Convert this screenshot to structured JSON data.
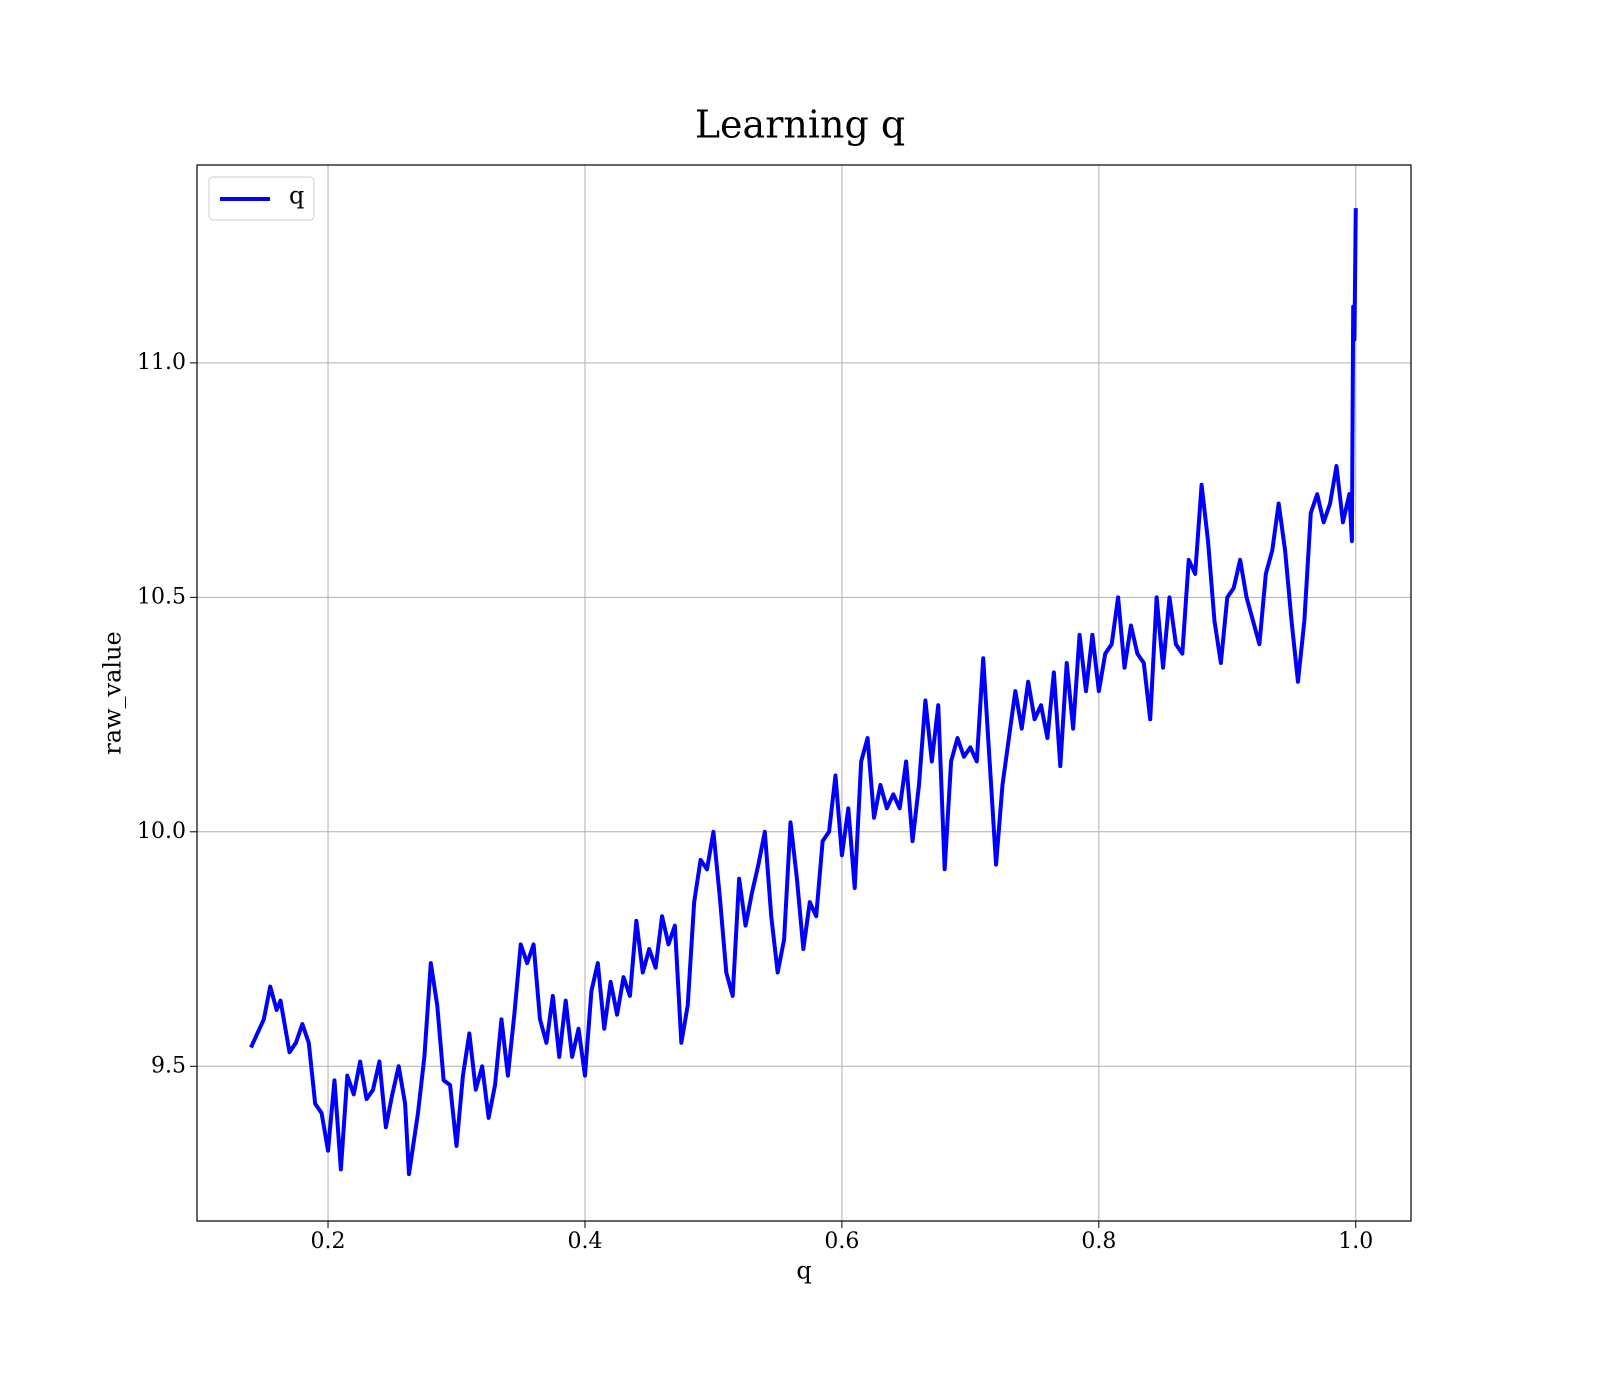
{
  "chart_data": {
    "type": "line",
    "title": "Learning q",
    "xlabel": "q",
    "ylabel": "raw_value",
    "xlim": [
      0.098,
      1.043
    ],
    "ylim": [
      9.17,
      11.422
    ],
    "xticks": [
      {
        "value": 0.2,
        "label": "0.2"
      },
      {
        "value": 0.4,
        "label": "0.4"
      },
      {
        "value": 0.6,
        "label": "0.6"
      },
      {
        "value": 0.8,
        "label": "0.8"
      },
      {
        "value": 1.0,
        "label": "1.0"
      }
    ],
    "yticks": [
      {
        "value": 9.5,
        "label": "9.5"
      },
      {
        "value": 10.0,
        "label": "10.0"
      },
      {
        "value": 10.5,
        "label": "10.5"
      },
      {
        "value": 11.0,
        "label": "11.0"
      }
    ],
    "grid": true,
    "legend": "upper left",
    "x": [
      0.14,
      0.15,
      0.155,
      0.16,
      0.163,
      0.17,
      0.175,
      0.18,
      0.185,
      0.19,
      0.195,
      0.2,
      0.205,
      0.21,
      0.215,
      0.22,
      0.225,
      0.23,
      0.235,
      0.24,
      0.245,
      0.25,
      0.255,
      0.26,
      0.263,
      0.27,
      0.275,
      0.28,
      0.285,
      0.29,
      0.295,
      0.3,
      0.305,
      0.31,
      0.315,
      0.32,
      0.325,
      0.33,
      0.335,
      0.34,
      0.345,
      0.35,
      0.355,
      0.36,
      0.365,
      0.37,
      0.375,
      0.38,
      0.385,
      0.39,
      0.395,
      0.4,
      0.405,
      0.41,
      0.415,
      0.42,
      0.425,
      0.43,
      0.435,
      0.44,
      0.445,
      0.45,
      0.455,
      0.46,
      0.465,
      0.47,
      0.475,
      0.48,
      0.485,
      0.49,
      0.495,
      0.5,
      0.505,
      0.51,
      0.515,
      0.52,
      0.525,
      0.53,
      0.535,
      0.54,
      0.545,
      0.55,
      0.555,
      0.56,
      0.565,
      0.57,
      0.575,
      0.58,
      0.585,
      0.59,
      0.595,
      0.6,
      0.605,
      0.61,
      0.615,
      0.62,
      0.625,
      0.63,
      0.635,
      0.64,
      0.645,
      0.65,
      0.655,
      0.66,
      0.665,
      0.67,
      0.675,
      0.68,
      0.685,
      0.69,
      0.695,
      0.7,
      0.705,
      0.71,
      0.715,
      0.72,
      0.725,
      0.73,
      0.735,
      0.74,
      0.745,
      0.75,
      0.755,
      0.76,
      0.765,
      0.77,
      0.775,
      0.78,
      0.785,
      0.79,
      0.795,
      0.8,
      0.805,
      0.81,
      0.815,
      0.82,
      0.825,
      0.83,
      0.835,
      0.84,
      0.845,
      0.85,
      0.855,
      0.86,
      0.865,
      0.87,
      0.875,
      0.88,
      0.885,
      0.89,
      0.895,
      0.9,
      0.905,
      0.91,
      0.915,
      0.92,
      0.925,
      0.93,
      0.935,
      0.94,
      0.945,
      0.95,
      0.955,
      0.96,
      0.965,
      0.97,
      0.975,
      0.98,
      0.985,
      0.99,
      0.995,
      0.997,
      0.998,
      0.999,
      1.0
    ],
    "series": [
      {
        "name": "q",
        "color": "#0000ff",
        "values": [
          9.54,
          9.6,
          9.67,
          9.62,
          9.64,
          9.53,
          9.55,
          9.59,
          9.55,
          9.42,
          9.4,
          9.32,
          9.47,
          9.28,
          9.48,
          9.44,
          9.51,
          9.43,
          9.45,
          9.51,
          9.37,
          9.44,
          9.5,
          9.42,
          9.27,
          9.4,
          9.52,
          9.72,
          9.63,
          9.47,
          9.46,
          9.33,
          9.48,
          9.57,
          9.45,
          9.5,
          9.39,
          9.46,
          9.6,
          9.48,
          9.61,
          9.76,
          9.72,
          9.76,
          9.6,
          9.55,
          9.65,
          9.52,
          9.64,
          9.52,
          9.58,
          9.48,
          9.66,
          9.72,
          9.58,
          9.68,
          9.61,
          9.69,
          9.65,
          9.81,
          9.7,
          9.75,
          9.71,
          9.82,
          9.76,
          9.8,
          9.55,
          9.63,
          9.85,
          9.94,
          9.92,
          10.0,
          9.86,
          9.7,
          9.65,
          9.9,
          9.8,
          9.87,
          9.93,
          10.0,
          9.82,
          9.7,
          9.77,
          10.02,
          9.9,
          9.75,
          9.85,
          9.82,
          9.98,
          10.0,
          10.12,
          9.95,
          10.05,
          9.88,
          10.15,
          10.2,
          10.03,
          10.1,
          10.05,
          10.08,
          10.05,
          10.15,
          9.98,
          10.1,
          10.28,
          10.15,
          10.27,
          9.92,
          10.15,
          10.2,
          10.16,
          10.18,
          10.15,
          10.37,
          10.15,
          9.93,
          10.1,
          10.2,
          10.3,
          10.22,
          10.32,
          10.24,
          10.27,
          10.2,
          10.34,
          10.14,
          10.36,
          10.22,
          10.42,
          10.3,
          10.42,
          10.3,
          10.38,
          10.4,
          10.5,
          10.35,
          10.44,
          10.38,
          10.36,
          10.24,
          10.5,
          10.35,
          10.5,
          10.4,
          10.38,
          10.58,
          10.55,
          10.74,
          10.62,
          10.45,
          10.36,
          10.5,
          10.52,
          10.58,
          10.5,
          10.45,
          10.4,
          10.55,
          10.6,
          10.7,
          10.6,
          10.45,
          10.32,
          10.45,
          10.68,
          10.72,
          10.66,
          10.7,
          10.78,
          10.66,
          10.72,
          10.62,
          11.12,
          11.05,
          11.33
        ]
      }
    ]
  }
}
